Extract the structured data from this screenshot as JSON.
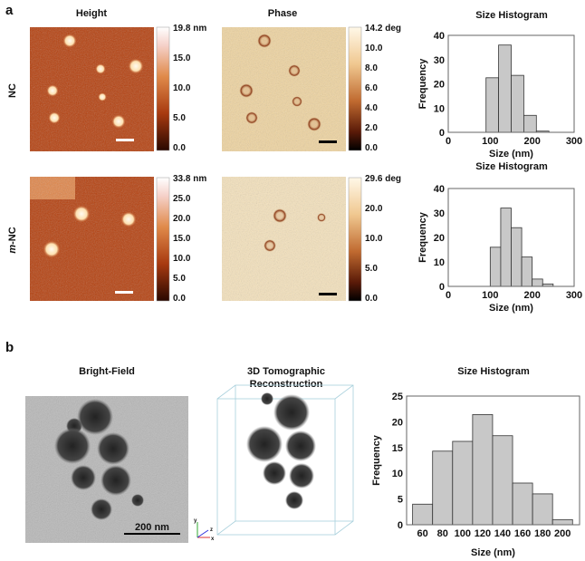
{
  "panel_a": {
    "letter": "a",
    "col_titles": {
      "height": "Height",
      "phase": "Phase",
      "hist": "Size Histogram"
    },
    "rows": [
      {
        "label": "NC",
        "height_scale": [
          "19.8 nm",
          "15.0",
          "10.0",
          "5.0",
          "0.0"
        ],
        "phase_scale": [
          "14.2 deg",
          "10.0",
          "8.0",
          "6.0",
          "4.0",
          "2.0",
          "0.0"
        ]
      },
      {
        "label_italic": "m",
        "label": "-NC",
        "height_scale": [
          "33.8 nm",
          "25.0",
          "20.0",
          "15.0",
          "10.0",
          "5.0",
          "0.0"
        ],
        "phase_scale": [
          "29.6 deg",
          "20.0",
          "10.0",
          "5.0",
          "0.0"
        ]
      }
    ]
  },
  "panel_b": {
    "letter": "b",
    "titles": {
      "bf": "Bright-Field",
      "tomo1": "3D Tomographic",
      "tomo2": "Reconstruction",
      "hist": "Size Histogram"
    },
    "scale_bar": "200 nm",
    "axis_labels": {
      "y": "y",
      "z": "z",
      "x": "x"
    }
  },
  "colors": {
    "bar_fill": "#c8c8c8",
    "bar_stroke": "#333333",
    "height_cmap_mid": "#b5400e",
    "phase_bg": "#f0d9a8"
  },
  "chart_data": [
    {
      "type": "bar",
      "title": "Size Histogram",
      "xlabel": "Size (nm)",
      "ylabel": "Frequency",
      "xlim": [
        0,
        300
      ],
      "ylim": [
        0,
        40
      ],
      "xticks": [
        0,
        100,
        200,
        300
      ],
      "yticks": [
        0,
        10,
        20,
        30,
        40
      ],
      "bins": [
        [
          90,
          120
        ],
        [
          120,
          150
        ],
        [
          150,
          180
        ],
        [
          180,
          210
        ],
        [
          210,
          240
        ]
      ],
      "values": [
        22.5,
        36,
        23.5,
        7,
        0.5
      ]
    },
    {
      "type": "bar",
      "title": "Size Histogram",
      "xlabel": "Size (nm)",
      "ylabel": "Frequency",
      "xlim": [
        0,
        300
      ],
      "ylim": [
        0,
        40
      ],
      "xticks": [
        0,
        100,
        200,
        300
      ],
      "yticks": [
        0,
        10,
        20,
        30,
        40
      ],
      "bins": [
        [
          100,
          125
        ],
        [
          125,
          150
        ],
        [
          150,
          175
        ],
        [
          175,
          200
        ],
        [
          200,
          225
        ],
        [
          225,
          250
        ]
      ],
      "values": [
        16,
        32,
        24,
        12,
        3,
        1
      ]
    },
    {
      "type": "bar",
      "title": "Size Histogram",
      "xlabel": "Size (nm)",
      "ylabel": "Frequency",
      "xlim": [
        44,
        217
      ],
      "ylim": [
        0,
        25
      ],
      "xticks": [
        60,
        80,
        100,
        120,
        140,
        160,
        180,
        200
      ],
      "yticks": [
        0,
        5,
        10,
        15,
        20,
        25
      ],
      "bins": [
        [
          50,
          70
        ],
        [
          70,
          90
        ],
        [
          90,
          110
        ],
        [
          110,
          130
        ],
        [
          130,
          150
        ],
        [
          150,
          170
        ],
        [
          170,
          190
        ],
        [
          190,
          210
        ]
      ],
      "values": [
        4,
        14.3,
        16.2,
        21.4,
        17.3,
        8.1,
        6,
        1
      ]
    }
  ]
}
